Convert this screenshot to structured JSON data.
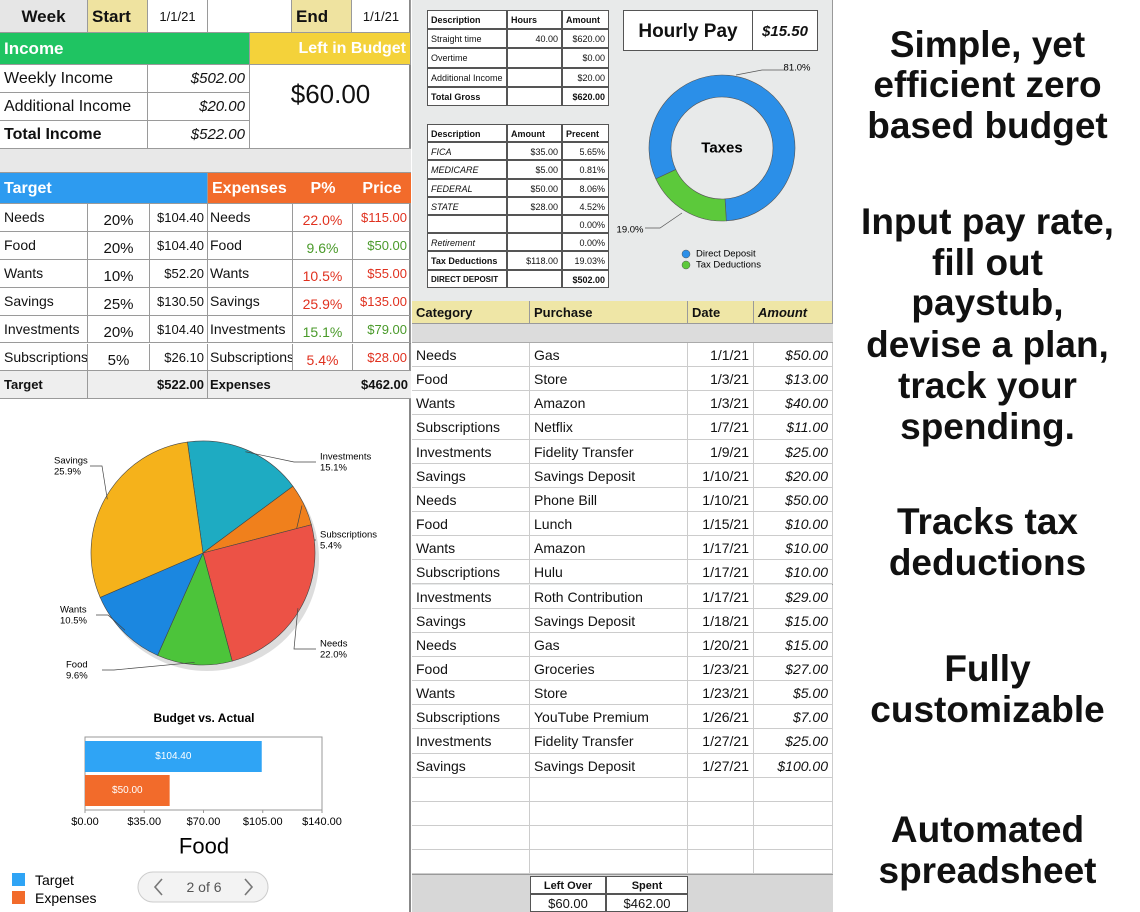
{
  "header": {
    "week_label": "Week",
    "start_label": "Start",
    "start_date": "1/1/21",
    "end_label": "End",
    "end_date": "1/1/21"
  },
  "income": {
    "title": "Income",
    "left_title": "Left in Budget",
    "left_value": "$60.00",
    "rows": [
      {
        "label": "Weekly Income",
        "amount": "$502.00"
      },
      {
        "label": "Additional Income",
        "amount": "$20.00"
      },
      {
        "label": "Total Income",
        "amount": "$522.00"
      }
    ]
  },
  "target": {
    "title": "Target",
    "rows": [
      {
        "category": "Needs",
        "percent": "20%",
        "amount": "$104.40"
      },
      {
        "category": "Food",
        "percent": "20%",
        "amount": "$104.40"
      },
      {
        "category": "Wants",
        "percent": "10%",
        "amount": "$52.20"
      },
      {
        "category": "Savings",
        "percent": "25%",
        "amount": "$130.50"
      },
      {
        "category": "Investments",
        "percent": "20%",
        "amount": "$104.40"
      },
      {
        "category": "Subscriptions",
        "percent": "5%",
        "amount": "$26.10"
      }
    ],
    "total_label": "Target",
    "total": "$522.00"
  },
  "expenses": {
    "title": "Expenses",
    "percent_header": "P%",
    "price_header": "Price",
    "rows": [
      {
        "category": "Needs",
        "percent": "22.0%",
        "price": "$115.00",
        "color": "#e0311f"
      },
      {
        "category": "Food",
        "percent": "9.6%",
        "price": "$50.00",
        "color": "#4a9a2a"
      },
      {
        "category": "Wants",
        "percent": "10.5%",
        "price": "$55.00",
        "color": "#e0311f"
      },
      {
        "category": "Savings",
        "percent": "25.9%",
        "price": "$135.00",
        "color": "#e0311f"
      },
      {
        "category": "Investments",
        "percent": "15.1%",
        "price": "$79.00",
        "color": "#4a9a2a"
      },
      {
        "category": "Subscriptions",
        "percent": "5.4%",
        "price": "$28.00",
        "color": "#e0311f"
      }
    ],
    "total_label": "Expenses",
    "total": "$462.00"
  },
  "pie_chart": {
    "type": "pie",
    "categories": [
      "Investments",
      "Subscriptions",
      "Needs",
      "Food",
      "Wants",
      "Savings"
    ],
    "values": [
      15.1,
      5.4,
      22.0,
      9.6,
      10.5,
      25.9
    ],
    "value_labels": [
      "15.1%",
      "5.4%",
      "22.0%",
      "9.6%",
      "10.5%",
      "25.9%"
    ],
    "colors": [
      "#1eabc2",
      "#f0801c",
      "#ec5246",
      "#4cc43a",
      "#1b87e0",
      "#f5b21b"
    ]
  },
  "bar_chart": {
    "type": "bar",
    "orientation": "horizontal",
    "title": "Budget vs. Actual",
    "category": "Food",
    "series": [
      {
        "name": "Target",
        "color": "#2fa4f5",
        "values": [
          104.4
        ],
        "value_labels": [
          "$104.40"
        ]
      },
      {
        "name": "Expenses",
        "color": "#f26b2b",
        "values": [
          50
        ],
        "value_labels": [
          "$50.00"
        ]
      }
    ],
    "xlim": [
      0,
      140
    ],
    "xticks": [
      {
        "value": 0,
        "label": "$0.00"
      },
      {
        "value": 35,
        "label": "$35.00"
      },
      {
        "value": 70,
        "label": "$70.00"
      },
      {
        "value": 105,
        "label": "$105.00"
      },
      {
        "value": 140,
        "label": "$140.00"
      }
    ]
  },
  "pager": {
    "label": "2 of 6"
  },
  "paystub": {
    "headers": [
      "Description",
      "Hours",
      "Amount"
    ],
    "rows": [
      {
        "description": "Straight time",
        "hours": "40.00",
        "amount": "$620.00"
      },
      {
        "description": "Overtime",
        "amount": "$0.00"
      },
      {
        "description": "Additional Income",
        "amount": "$20.00"
      },
      {
        "description": "Total Gross",
        "amount": "$620.00"
      }
    ]
  },
  "hourly_pay": {
    "label": "Hourly Pay",
    "rate": "$15.50"
  },
  "taxes": {
    "headers": [
      "Description",
      "Amount",
      "Precent"
    ],
    "rows": [
      {
        "description": "FICA",
        "amount": "$35.00",
        "percent": "5.65%"
      },
      {
        "description": "MEDICARE",
        "amount": "$5.00",
        "percent": "0.81%"
      },
      {
        "description": "FEDERAL",
        "amount": "$50.00",
        "percent": "8.06%"
      },
      {
        "description": "STATE",
        "amount": "$28.00",
        "percent": "4.52%"
      },
      {
        "percent": "0.00%"
      },
      {
        "description": "Retirement",
        "percent": "0.00%"
      },
      {
        "description": "Tax Deductions",
        "amount": "$118.00",
        "percent": "19.03%"
      },
      {
        "description": "DIRECT DEPOSIT",
        "total": "$502.00"
      }
    ]
  },
  "donut_chart": {
    "type": "donut",
    "title": "Taxes",
    "categories": [
      "Direct Deposit",
      "Tax Deductions"
    ],
    "values": [
      81.0,
      19.0
    ],
    "value_labels": [
      "81.0%",
      "19.0%"
    ],
    "colors": [
      "#2b8fe8",
      "#5cc93b"
    ]
  },
  "transactions": {
    "headers": [
      "Category",
      "Purchase",
      "Date",
      "Amount"
    ],
    "rows": [
      [
        "Needs",
        "Gas",
        "1/1/21",
        "$50.00"
      ],
      [
        "Food",
        "Store",
        "1/3/21",
        "$13.00"
      ],
      [
        "Wants",
        "Amazon",
        "1/3/21",
        "$40.00"
      ],
      [
        "Subscriptions",
        "Netflix",
        "1/7/21",
        "$11.00"
      ],
      [
        "Investments",
        "Fidelity Transfer",
        "1/9/21",
        "$25.00"
      ],
      [
        "Savings",
        "Savings Deposit",
        "1/10/21",
        "$20.00"
      ],
      [
        "Needs",
        "Phone Bill",
        "1/10/21",
        "$50.00"
      ],
      [
        "Food",
        "Lunch",
        "1/15/21",
        "$10.00"
      ],
      [
        "Wants",
        "Amazon",
        "1/17/21",
        "$10.00"
      ],
      [
        "Subscriptions",
        "Hulu",
        "1/17/21",
        "$10.00"
      ],
      [
        "Investments",
        "Roth Contribution",
        "1/17/21",
        "$29.00"
      ],
      [
        "Savings",
        "Savings Deposit",
        "1/18/21",
        "$15.00"
      ],
      [
        "Needs",
        "Gas",
        "1/20/21",
        "$15.00"
      ],
      [
        "Food",
        "Groceries",
        "1/23/21",
        "$27.00"
      ],
      [
        "Wants",
        "Store",
        "1/23/21",
        "$5.00"
      ],
      [
        "Subscriptions",
        "YouTube Premium",
        "1/26/21",
        "$7.00"
      ],
      [
        "Investments",
        "Fidelity Transfer",
        "1/27/21",
        "$25.00"
      ],
      [
        "Savings",
        "Savings Deposit",
        "1/27/21",
        "$100.00"
      ]
    ]
  },
  "summary": {
    "left_over_label": "Left Over",
    "spent_label": "Spent",
    "left_over": "$60.00",
    "spent": "$462.00"
  },
  "features": [
    [
      "Simple, yet",
      "efficient zero",
      "based budget"
    ],
    [
      "Input pay rate,",
      "fill out",
      "paystub,",
      "devise a plan,",
      "track your",
      "spending."
    ],
    [
      "Tracks tax",
      "deductions"
    ],
    [
      "Fully",
      "customizable"
    ],
    [
      "Automated",
      "spreadsheet"
    ]
  ]
}
